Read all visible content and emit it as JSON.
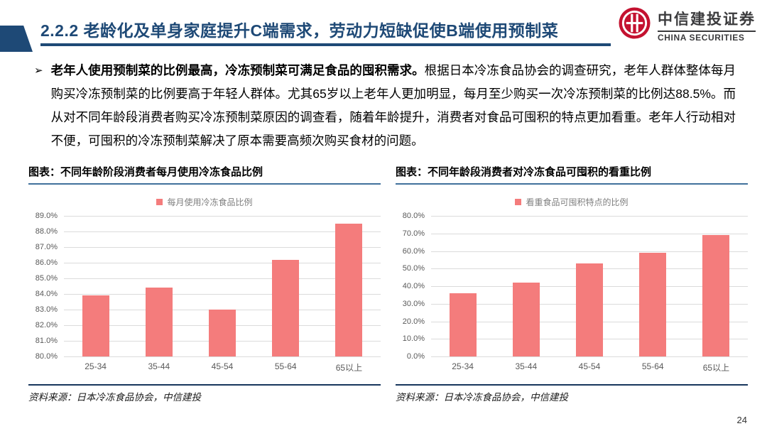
{
  "header": {
    "title": "2.2.2 老龄化及单身家庭提升C端需求，劳动力短缺促使B端使用预制菜",
    "logo_cn": "中信建投证券",
    "logo_en": "CHINA SECURITIES"
  },
  "bullet": {
    "marker": "➢",
    "bold_text": "老年人使用预制菜的比例最高，冷冻预制菜可满足食品的囤积需求。",
    "body_text": "根据日本冷冻食品协会的调查研究，老年人群体整体每月购买冷冻预制菜的比例要高于年轻人群体。尤其65岁以上老年人更加明显，每月至少购买一次冷冻预制菜的比例达88.5%。而从对不同年龄段消费者购买冷冻预制菜原因的调查看，随着年龄提升，消费者对食品可囤积的特点更加看重。老年人行动相对不便，可囤积的冷冻预制菜解决了原本需要高频次购买食材的问题。"
  },
  "chart_data": [
    {
      "type": "bar",
      "title": "图表：不同年龄阶段消费者每月使用冷冻食品比例",
      "legend_label": "每月使用冷冻食品比例",
      "legend_position": "top",
      "categories": [
        "25-34",
        "35-44",
        "45-54",
        "55-64",
        "65以上"
      ],
      "values": [
        83.9,
        84.4,
        83.0,
        86.2,
        88.5
      ],
      "ylim": [
        80,
        89
      ],
      "ystep": 1,
      "grid": true,
      "bar_color": "#F47C7C",
      "source": "资料来源：日本冷冻食品协会，中信建投"
    },
    {
      "type": "bar",
      "title": "图表：不同年龄段消费者对冷冻食品可囤积的看重比例",
      "legend_label": "看重食品可囤积特点的比例",
      "legend_position": "top",
      "categories": [
        "25-34",
        "35-44",
        "45-54",
        "55-64",
        "65以上"
      ],
      "values": [
        36,
        42,
        53,
        59,
        69
      ],
      "ylim": [
        0,
        80
      ],
      "ystep": 10,
      "grid": true,
      "bar_color": "#F47C7C",
      "source": "资料来源：日本冷冻食品协会，中信建投"
    }
  ],
  "footer": {
    "page_number": "24"
  },
  "colors": {
    "navy": "#1E4976",
    "chart_title_rule": "#41719C",
    "source_rule": "#17365D",
    "bar": "#F47C7C",
    "logo_red": "#C41230"
  }
}
